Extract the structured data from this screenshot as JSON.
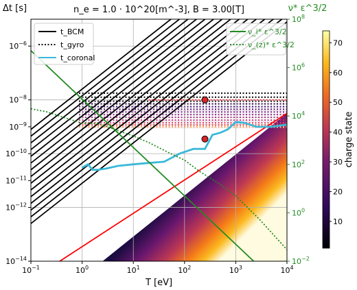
{
  "chart_data": {
    "type": "line",
    "title": "n_e = 1.0 · 10^20[m^-3], B = 3.00[T]",
    "xlabel": "T [eV]",
    "ylabel_left": "Δt [s]",
    "ylabel_right": "ν* ε^3/2",
    "colorbar_label": "charge state",
    "xscale": "log",
    "yscale_left": "log",
    "yscale_right": "log",
    "xlim": [
      0.1,
      10000
    ],
    "ylim_left": [
      1e-14,
      1e-05
    ],
    "ylim_right": [
      0.01,
      100000000
    ],
    "colorbar_range": [
      1,
      74
    ],
    "x_ticks": [
      "10^-1",
      "10^0",
      "10^1",
      "10^2",
      "10^3",
      "10^4"
    ],
    "y_left_ticks": [
      "10^-14",
      "10^-12",
      "10^-11",
      "10^-10",
      "10^-9",
      "10^-8",
      "10^-6"
    ],
    "y_right_ticks": [
      "10^-2",
      "10^0",
      "10^2",
      "10^4",
      "10^6",
      "10^8"
    ],
    "colorbar_ticks": [
      "10",
      "20",
      "30",
      "40",
      "50",
      "60",
      "70"
    ],
    "grid": true,
    "legend_left": {
      "placement": "top-left",
      "entries": [
        {
          "label": "t_BCM",
          "style": "solid",
          "color": "#000000"
        },
        {
          "label": "t_gyro",
          "style": "dotted",
          "color": "#000000"
        },
        {
          "label": "t_coronal",
          "style": "solid",
          "color": "#3ab8d8"
        }
      ]
    },
    "legend_right": {
      "placement": "top-right",
      "entries": [
        {
          "label": "ν_i* ε^3/2",
          "style": "solid",
          "color": "#228b22"
        },
        {
          "label": "ν_(z)* ε^3/2",
          "style": "dotted",
          "color": "#228b22"
        }
      ]
    },
    "series": [
      {
        "name": "t_BCM reference",
        "color": "#ff0000",
        "x": [
          0.1,
          10000
        ],
        "y": [
          2e-15,
          3.16e-09
        ]
      },
      {
        "name": "t_coronal",
        "color": "#3ab8d8",
        "x": [
          1,
          1.3,
          1.6,
          2,
          3,
          5,
          10,
          20,
          40,
          80,
          150,
          250,
          350,
          500,
          700,
          1000,
          1500,
          2500,
          5000,
          10000
        ],
        "y": [
          3e-11,
          4e-11,
          2.5e-11,
          2.5e-11,
          2.8e-11,
          3.5e-11,
          4e-11,
          4.5e-11,
          5e-11,
          1e-10,
          1.5e-10,
          1.5e-10,
          5e-10,
          6e-10,
          8e-10,
          1.5e-09,
          1.4e-09,
          1e-09,
          1e-09,
          1.2e-09
        ]
      },
      {
        "name": "ν_i* ε^3/2",
        "axis": "right",
        "color": "#228b22",
        "x": [
          0.1,
          10000
        ],
        "y": [
          5000000,
          0.0005
        ]
      },
      {
        "name": "ν_(z)* ε^3/2",
        "axis": "right",
        "color": "#228b22",
        "x": [
          0.1,
          0.2,
          0.5,
          1,
          2,
          5,
          10,
          20,
          50,
          100,
          200,
          500,
          1000,
          3000,
          10000
        ],
        "y": [
          20000,
          15000,
          8000,
          5000,
          5000,
          2500,
          1500,
          800,
          300,
          150,
          50,
          15,
          5,
          0.5,
          0.03
        ]
      }
    ],
    "markers": [
      {
        "color": "#d62728",
        "x": 250,
        "y": 1e-08
      },
      {
        "color": "#d62728",
        "x": 250,
        "y": 3.5e-10
      }
    ]
  }
}
